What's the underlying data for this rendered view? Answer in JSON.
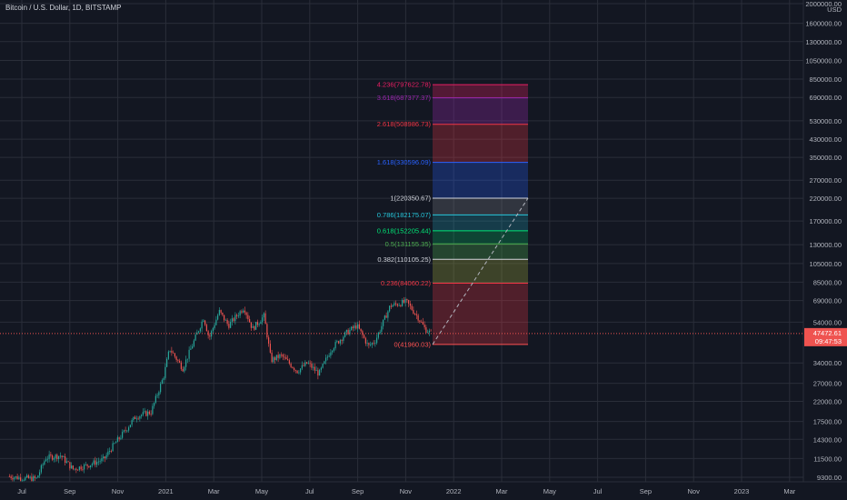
{
  "header": {
    "symbol_title": "Bitcoin / U.S. Dollar, 1D, BITSTAMP"
  },
  "colors": {
    "background": "#131722",
    "grid": "#2a2e39",
    "axis_text": "#b2b5be",
    "up_candle": "#26a69a",
    "down_candle": "#ef5350",
    "price_line": "#ef5350"
  },
  "chart_data": {
    "type": "candlestick",
    "scale": "log",
    "currency": "USD",
    "y_ticks": [
      "2000000.00",
      "1600000.00",
      "1300000.00",
      "1050000.00",
      "850000.00",
      "690000.00",
      "530000.00",
      "430000.00",
      "350000.00",
      "270000.00",
      "220000.00",
      "170000.00",
      "130000.00",
      "105000.00",
      "85000.00",
      "69000.00",
      "54000.00",
      "34000.00",
      "27000.00",
      "22000.00",
      "17500.00",
      "14300.00",
      "11500.00",
      "9300.00"
    ],
    "y_tick_values": [
      2000000,
      1600000,
      1300000,
      1050000,
      850000,
      690000,
      530000,
      430000,
      350000,
      270000,
      220000,
      170000,
      130000,
      105000,
      85000,
      69000,
      54000,
      34000,
      27000,
      22000,
      17500,
      14300,
      11500,
      9300
    ],
    "x_ticks": [
      "Jul",
      "Sep",
      "Nov",
      "2021",
      "Mar",
      "May",
      "Jul",
      "Sep",
      "Nov",
      "2022",
      "Mar",
      "May",
      "Jul",
      "Sep",
      "Nov",
      "2023",
      "Mar"
    ],
    "last_price": {
      "value": 47472.61,
      "label": "47472.61",
      "countdown": "09:47:53"
    },
    "price_path": [
      [
        "2020-06-15",
        9400
      ],
      [
        "2020-07-01",
        9200
      ],
      [
        "2020-07-20",
        9150
      ],
      [
        "2020-08-01",
        11600
      ],
      [
        "2020-08-20",
        11900
      ],
      [
        "2020-09-05",
        10200
      ],
      [
        "2020-09-25",
        10700
      ],
      [
        "2020-10-15",
        11400
      ],
      [
        "2020-10-25",
        13000
      ],
      [
        "2020-11-10",
        15500
      ],
      [
        "2020-11-25",
        18500
      ],
      [
        "2020-12-15",
        19500
      ],
      [
        "2020-12-31",
        29000
      ],
      [
        "2021-01-08",
        40000
      ],
      [
        "2021-01-25",
        32000
      ],
      [
        "2021-02-10",
        45000
      ],
      [
        "2021-02-21",
        57000
      ],
      [
        "2021-02-28",
        45000
      ],
      [
        "2021-03-13",
        61000
      ],
      [
        "2021-03-25",
        52000
      ],
      [
        "2021-04-14",
        64000
      ],
      [
        "2021-04-25",
        50000
      ],
      [
        "2021-05-10",
        58000
      ],
      [
        "2021-05-19",
        35000
      ],
      [
        "2021-06-01",
        37000
      ],
      [
        "2021-06-22",
        31000
      ],
      [
        "2021-07-05",
        34000
      ],
      [
        "2021-07-20",
        30000
      ],
      [
        "2021-08-05",
        40000
      ],
      [
        "2021-08-25",
        48000
      ],
      [
        "2021-09-07",
        52000
      ],
      [
        "2021-09-22",
        41000
      ],
      [
        "2021-10-01",
        44000
      ],
      [
        "2021-10-20",
        65000
      ],
      [
        "2021-11-10",
        68000
      ],
      [
        "2021-11-25",
        57000
      ],
      [
        "2021-12-04",
        50000
      ],
      [
        "2021-12-12",
        47472
      ]
    ],
    "fib_extension": {
      "start": {
        "date": "2021-12-12",
        "price": 41960.03
      },
      "end": {
        "date": "2022-05-15",
        "price": 220350.67
      },
      "levels": [
        {
          "ratio": 0,
          "label": "0(41960.03)",
          "price": 41960.03,
          "color": "#ff5252"
        },
        {
          "ratio": 0.236,
          "label": "0.236(84060.22)",
          "price": 84060.22,
          "color": "#f23645"
        },
        {
          "ratio": 0.382,
          "label": "0.382(110105.25)",
          "price": 110105.25,
          "color": "#d1d4dc"
        },
        {
          "ratio": 0.5,
          "label": "0.5(131155.35)",
          "price": 131155.35,
          "color": "#4caf50"
        },
        {
          "ratio": 0.618,
          "label": "0.618(152205.44)",
          "price": 152205.44,
          "color": "#00e676"
        },
        {
          "ratio": 0.786,
          "label": "0.786(182175.07)",
          "price": 182175.07,
          "color": "#26c6da"
        },
        {
          "ratio": 1,
          "label": "1(220350.67)",
          "price": 220350.67,
          "color": "#d1d4dc"
        },
        {
          "ratio": 1.618,
          "label": "1.618(330596.09)",
          "price": 330596.09,
          "color": "#2962ff"
        },
        {
          "ratio": 2.618,
          "label": "2.618(508986.73)",
          "price": 508986.73,
          "color": "#f23645"
        },
        {
          "ratio": 3.618,
          "label": "3.618(687377.37)",
          "price": 687377.37,
          "color": "#9c27b0"
        },
        {
          "ratio": 4.236,
          "label": "4.236(797622.78)",
          "price": 797622.78,
          "color": "#e91e63"
        }
      ],
      "zone_fills": [
        "rgba(242,54,69,0.28)",
        "rgba(160,170,60,0.30)",
        "rgba(76,175,80,0.30)",
        "rgba(0,230,118,0.22)",
        "rgba(38,198,218,0.22)",
        "rgba(120,123,134,0.30)",
        "rgba(41,98,255,0.28)",
        "rgba(242,54,69,0.28)",
        "rgba(156,39,176,0.30)",
        "rgba(233,30,99,0.30)"
      ]
    }
  }
}
